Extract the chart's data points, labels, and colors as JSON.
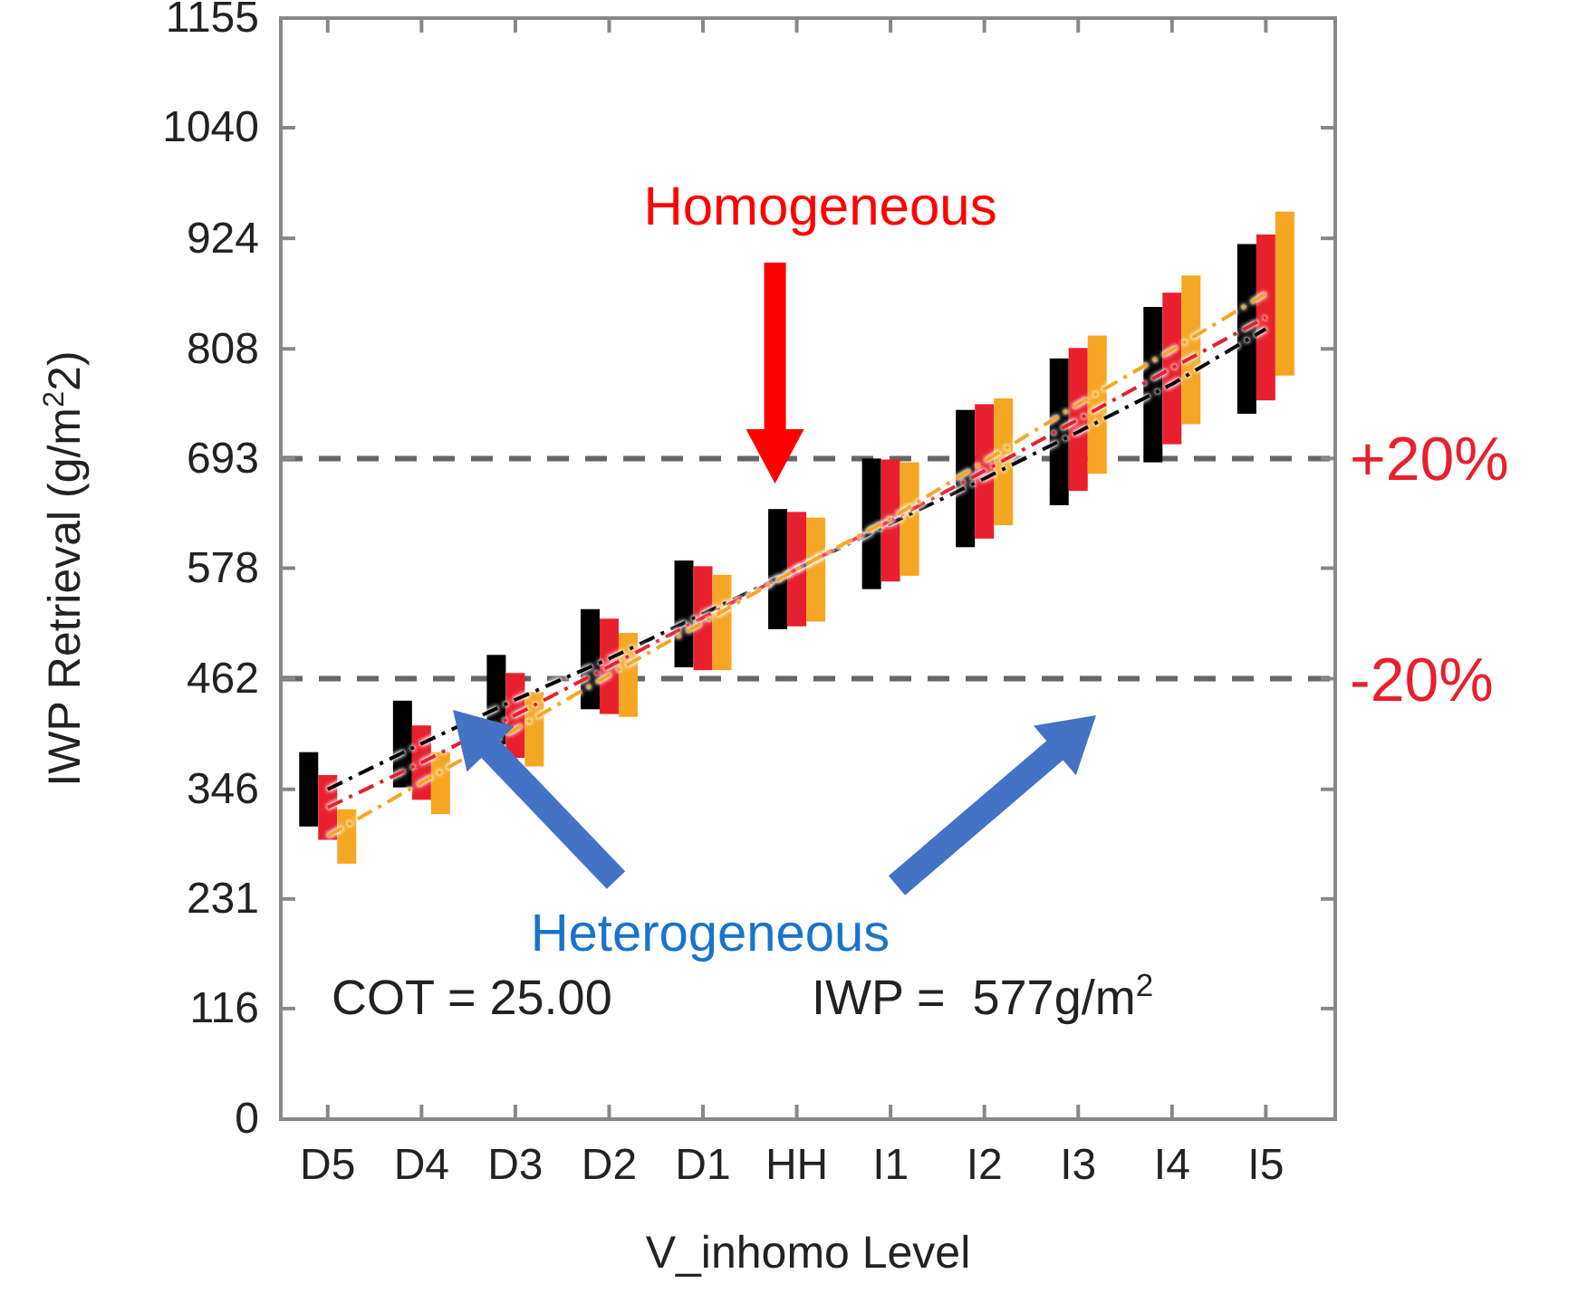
{
  "chart_data": {
    "type": "bar",
    "xlabel": "V_inhomo Level",
    "ylabel": "IWP Retrieval (g/m$^{2}$2)",
    "categories": [
      "D5",
      "D4",
      "D3",
      "D2",
      "D1",
      "HH",
      "I1",
      "I2",
      "I3",
      "I4",
      "I5"
    ],
    "ylim": [
      0,
      1155
    ],
    "yticks": [
      0,
      116,
      231,
      346,
      462,
      578,
      693,
      808,
      924,
      1040,
      1155
    ],
    "series": [
      {
        "color": "#000000",
        "base": [
          307,
          348,
          393,
          430,
          474,
          514,
          556,
          600,
          644,
          689,
          740
        ],
        "values": [
          78,
          91,
          94,
          105,
          112,
          126,
          137,
          144,
          154,
          163,
          178
        ]
      },
      {
        "color": "#e8202e",
        "base": [
          293,
          335,
          379,
          425,
          471,
          517,
          564,
          609,
          659,
          708,
          754
        ],
        "values": [
          68,
          78,
          89,
          100,
          109,
          120,
          128,
          141,
          150,
          159,
          174
        ]
      },
      {
        "color": "#f5a623",
        "base": [
          268,
          320,
          370,
          422,
          471,
          522,
          570,
          623,
          677,
          729,
          780
        ],
        "values": [
          57,
          65,
          78,
          88,
          100,
          109,
          119,
          133,
          145,
          156,
          172
        ]
      },
      {
        "type": "line",
        "color": "#000000",
        "line_style": "dashed",
        "values": [
          346,
          394,
          440,
          483,
          530,
          577,
          625,
          672,
          721,
          771,
          829
        ]
      },
      {
        "type": "line",
        "color": "#e8202e",
        "line_style": "dashed",
        "values": [
          327,
          374,
          424,
          475,
          526,
          577,
          628,
          680,
          734,
          788,
          841
        ]
      },
      {
        "type": "line",
        "color": "#f5a623",
        "line_style": "dashed",
        "values": [
          297,
          353,
          409,
          466,
          521,
          577,
          630,
          690,
          750,
          807,
          866
        ]
      }
    ],
    "ref_lines": [
      {
        "axis": "y",
        "value": 693,
        "color": "#666666",
        "line_style": "dashed"
      },
      {
        "axis": "y",
        "value": 462,
        "color": "#666666",
        "line_style": "dashed"
      }
    ],
    "annotations": [
      "+20%",
      "-20%",
      "Homogeneous",
      "Heterogeneous",
      "COT = 25.00",
      "IWP =  577g/m$^{2}$"
    ]
  }
}
